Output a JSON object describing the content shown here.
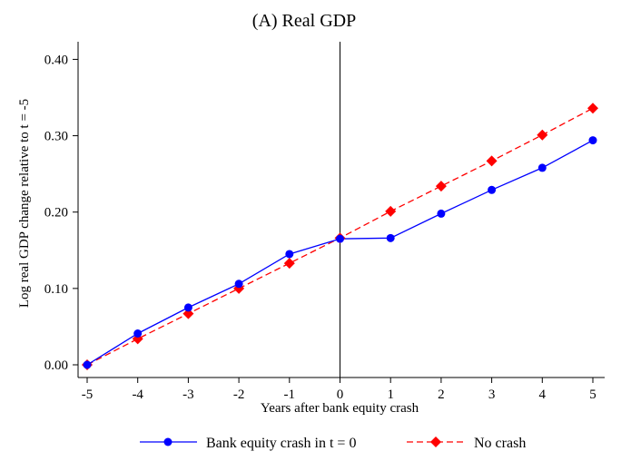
{
  "chart_data": {
    "type": "line",
    "title": "(A) Real GDP",
    "xlabel": "Years after bank equity crash",
    "ylabel": "Log real GDP change relative to t = -5",
    "x": [
      -5,
      -4,
      -3,
      -2,
      -1,
      0,
      1,
      2,
      3,
      4,
      5
    ],
    "x_tick_labels": [
      "-5",
      "-4",
      "-3",
      "-2",
      "-1",
      "0",
      "1",
      "2",
      "3",
      "4",
      "5"
    ],
    "y_ticks": [
      0,
      0.1,
      0.2,
      0.3,
      0.4
    ],
    "y_tick_labels": [
      "0.00",
      "0.10",
      "0.20",
      "0.30",
      "0.40"
    ],
    "xlim": [
      -5,
      5
    ],
    "ylim": [
      0,
      0.41
    ],
    "grid": false,
    "vertical_line_x": 0,
    "legend_position": "bottom",
    "series": [
      {
        "name": "Bank equity crash in t = 0",
        "color": "#0000ff",
        "line_style": "solid",
        "marker": "circle",
        "values": [
          0.0,
          0.041,
          0.075,
          0.106,
          0.145,
          0.165,
          0.166,
          0.198,
          0.229,
          0.258,
          0.294
        ]
      },
      {
        "name": "No crash",
        "color": "#ff0000",
        "line_style": "dashed",
        "marker": "diamond",
        "values": [
          0.0,
          0.034,
          0.067,
          0.1,
          0.133,
          0.166,
          0.201,
          0.234,
          0.267,
          0.301,
          0.336
        ]
      }
    ]
  }
}
